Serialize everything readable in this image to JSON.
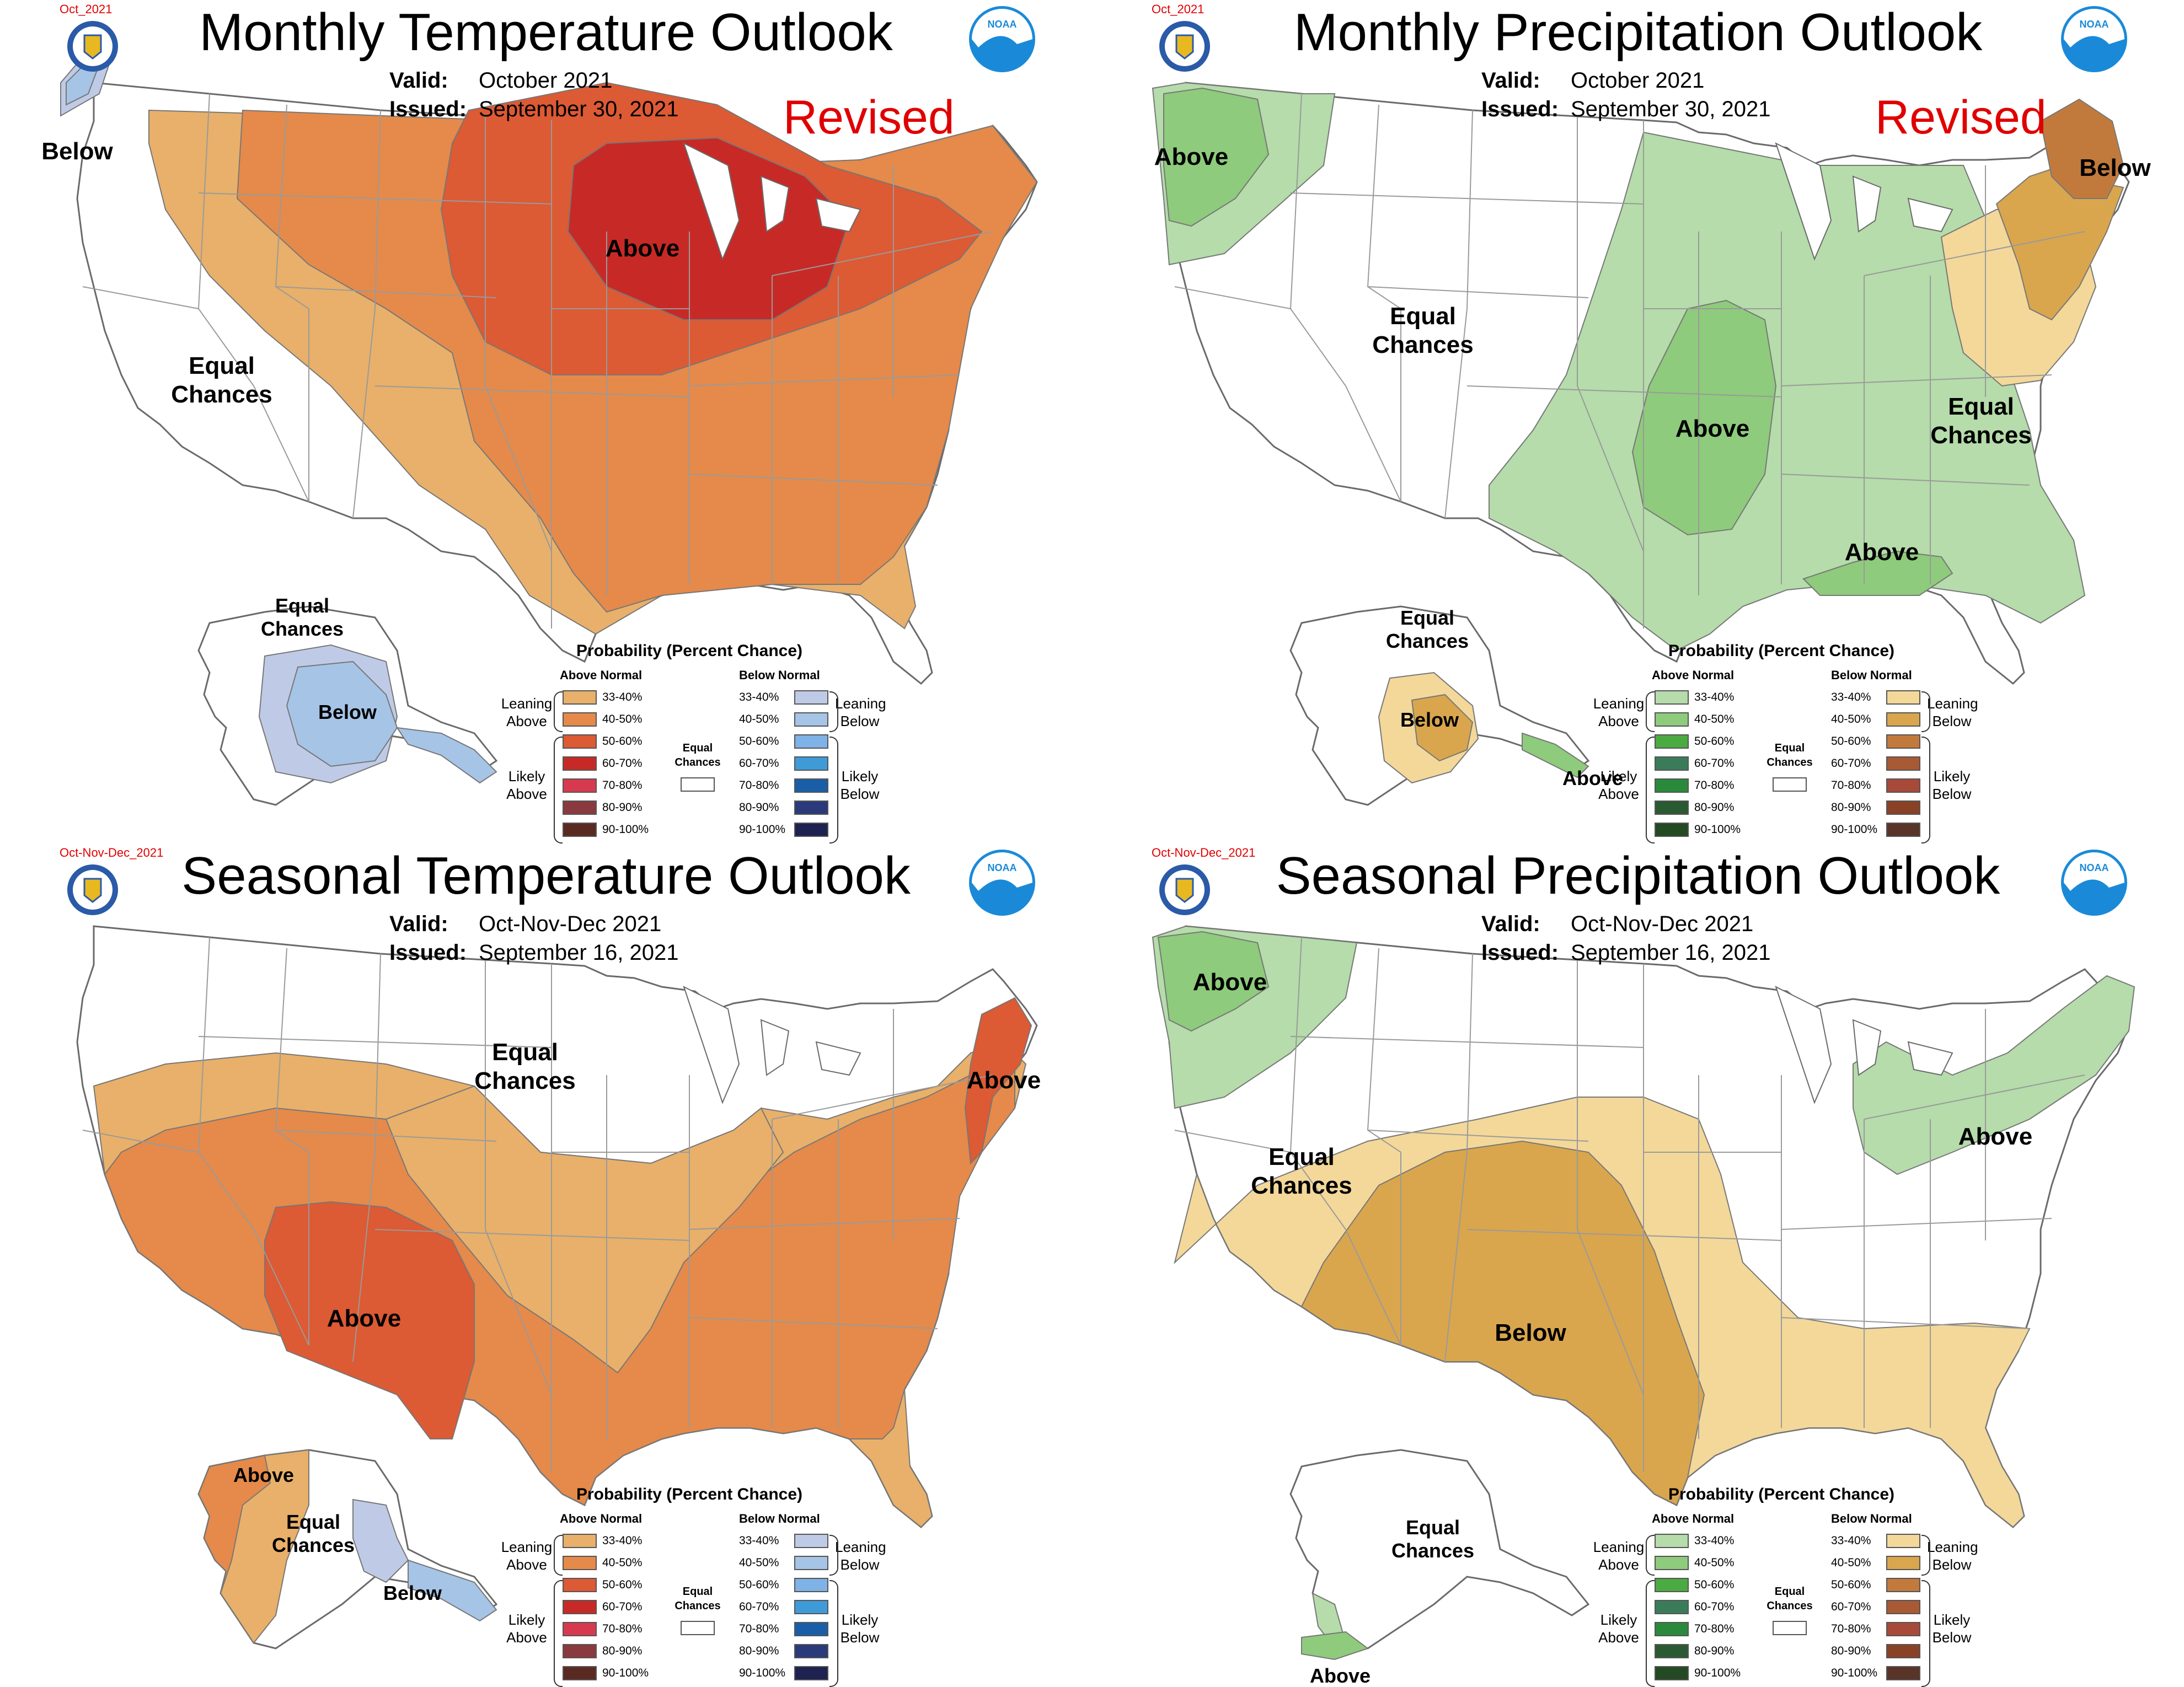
{
  "panels": [
    {
      "tag": "Oct_2021",
      "title": "Monthly Temperature Outlook",
      "valid_label": "Valid:",
      "valid": "October 2021",
      "issued_label": "Issued:",
      "issued": "September 30, 2021",
      "revised": "Revised",
      "labels": {
        "a": "Below",
        "b": "Above",
        "c": "Equal\nChances",
        "d": "Equal\nChances",
        "e": "Below"
      }
    },
    {
      "tag": "Oct_2021",
      "title": "Monthly Precipitation Outlook",
      "valid_label": "Valid:",
      "valid": "October 2021",
      "issued_label": "Issued:",
      "issued": "September 30, 2021",
      "revised": "Revised",
      "labels": {
        "a": "Above",
        "b": "Equal\nChances",
        "c": "Above",
        "d": "Below",
        "e": "Equal\nChances",
        "f": "Above",
        "g": "Equal\nChances",
        "h": "Below",
        "i": "Above"
      }
    },
    {
      "tag": "Oct-Nov-Dec_2021",
      "title": "Seasonal Temperature Outlook",
      "valid_label": "Valid:",
      "valid": "Oct-Nov-Dec 2021",
      "issued_label": "Issued:",
      "issued": "September 16, 2021",
      "revised": "",
      "labels": {
        "a": "Equal\nChances",
        "b": "Above",
        "c": "Above",
        "d": "Above",
        "e": "Equal\nChances",
        "f": "Below"
      }
    },
    {
      "tag": "Oct-Nov-Dec_2021",
      "title": "Seasonal Precipitation Outlook",
      "valid_label": "Valid:",
      "valid": "Oct-Nov-Dec 2021",
      "issued_label": "Issued:",
      "issued": "September 16, 2021",
      "revised": "",
      "labels": {
        "a": "Above",
        "b": "Equal\nChances",
        "c": "Above",
        "d": "Below",
        "e": "Equal\nChances",
        "f": "Above"
      }
    }
  ],
  "legend_temp": {
    "title": "Probability (Percent Chance)",
    "above_header": "Above Normal",
    "below_header": "Below Normal",
    "leaning_above": "Leaning\nAbove",
    "likely_above": "Likely\nAbove",
    "leaning_below": "Leaning\nBelow",
    "likely_below": "Likely\nBelow",
    "equal_chances": "Equal\nChances",
    "ranges": [
      "33-40%",
      "40-50%",
      "50-60%",
      "60-70%",
      "70-80%",
      "80-90%",
      "90-100%"
    ],
    "above_colors": [
      "#e8b06a",
      "#e58a4a",
      "#dc5a34",
      "#c72a26",
      "#d73a4e",
      "#8a3a3e",
      "#5a2a22"
    ],
    "below_colors": [
      "#bfcbe6",
      "#a6c4e6",
      "#7fb2e6",
      "#3f9ad8",
      "#1a5ea8",
      "#2a3a7a",
      "#1e2250"
    ]
  },
  "legend_precip": {
    "title": "Probability (Percent Chance)",
    "above_header": "Above Normal",
    "below_header": "Below Normal",
    "leaning_above": "Leaning\nAbove",
    "likely_above": "Likely\nAbove",
    "leaning_below": "Leaning\nBelow",
    "likely_below": "Likely\nBelow",
    "equal_chances": "Equal\nChances",
    "ranges": [
      "33-40%",
      "40-50%",
      "50-60%",
      "60-70%",
      "70-80%",
      "80-90%",
      "90-100%"
    ],
    "above_colors": [
      "#b5dcaa",
      "#8ecb7c",
      "#4caa42",
      "#3a7c5a",
      "#2a8a3c",
      "#2a5a32",
      "#234a22"
    ],
    "below_colors": [
      "#f3d89a",
      "#d9a64e",
      "#c27a3c",
      "#a85a34",
      "#a84a3a",
      "#8a4226",
      "#5a3428"
    ]
  },
  "colors": {
    "map_outline": "#6a6a6a",
    "state_lines": "#9a9a9a",
    "title_red": "#e00000",
    "noaa_blue": "#1a8ad8",
    "seal_blue": "#2a5aa8",
    "seal_gold": "#e8b820"
  }
}
